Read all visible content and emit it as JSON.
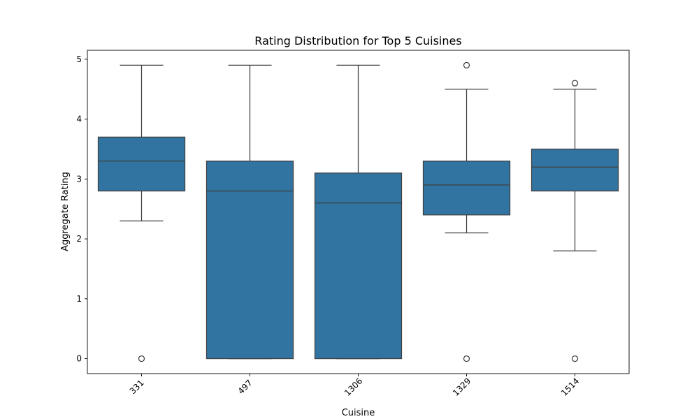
{
  "chart_data": {
    "type": "box",
    "title": "Rating Distribution for Top 5 Cuisines",
    "xlabel": "Cuisine",
    "ylabel": "Aggregate Rating",
    "ylim": [
      -0.25,
      5.15
    ],
    "yticks": [
      0,
      1,
      2,
      3,
      4,
      5
    ],
    "grid": false,
    "legend": "none",
    "box_color": "#3274a1",
    "line_color": "#3f3f3f",
    "categories": [
      "331",
      "497",
      "1306",
      "1329",
      "1514"
    ],
    "boxes": [
      {
        "category": "331",
        "whisker_low": 2.3,
        "q1": 2.8,
        "median": 3.3,
        "q3": 3.7,
        "whisker_high": 4.9,
        "outliers": [
          0.0
        ]
      },
      {
        "category": "497",
        "whisker_low": 0.0,
        "q1": 0.0,
        "median": 2.8,
        "q3": 3.3,
        "whisker_high": 4.9,
        "outliers": []
      },
      {
        "category": "1306",
        "whisker_low": 0.0,
        "q1": 0.0,
        "median": 2.6,
        "q3": 3.1,
        "whisker_high": 4.9,
        "outliers": []
      },
      {
        "category": "1329",
        "whisker_low": 2.1,
        "q1": 2.4,
        "median": 2.9,
        "q3": 3.3,
        "whisker_high": 4.5,
        "outliers": [
          4.9,
          0.0
        ]
      },
      {
        "category": "1514",
        "whisker_low": 1.8,
        "q1": 2.8,
        "median": 3.2,
        "q3": 3.5,
        "whisker_high": 4.5,
        "outliers": [
          4.6,
          0.0
        ]
      }
    ]
  }
}
